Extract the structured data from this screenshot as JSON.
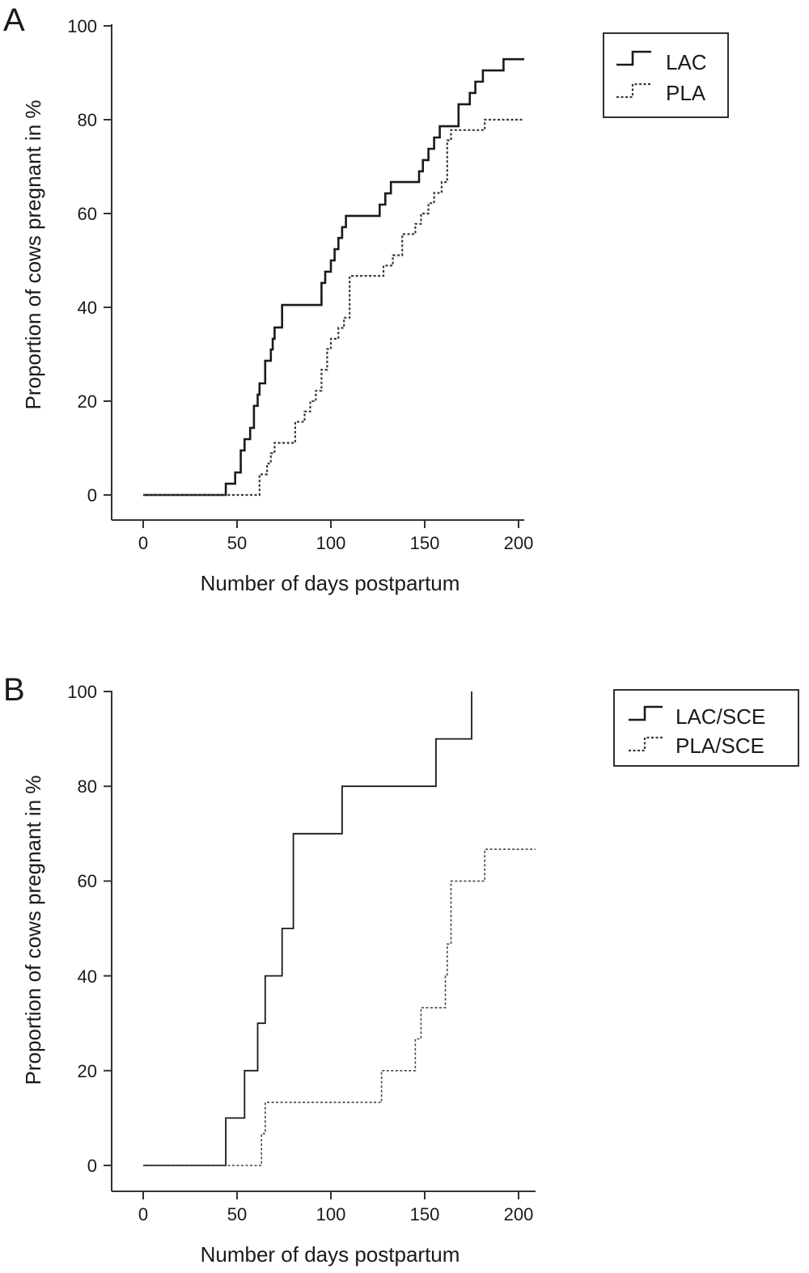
{
  "chart_data": [
    {
      "type": "line",
      "panel_label": "A",
      "xlabel": "Number of days postpartum",
      "ylabel": "Proportion of cows pregnant in %",
      "xlim": [
        -16,
        204
      ],
      "ylim": [
        -5.5,
        100
      ],
      "xticks": [
        0,
        50,
        100,
        150,
        200
      ],
      "yticks": [
        0,
        20,
        40,
        60,
        80,
        100
      ],
      "grid": false,
      "legend_position": "top-right",
      "series": [
        {
          "name": "LAC",
          "style": "solid",
          "x": [
            0,
            44,
            49,
            52,
            54,
            57,
            59,
            61,
            62,
            65,
            68,
            69,
            70,
            74,
            76,
            78,
            80,
            95,
            97,
            100,
            102,
            104,
            106,
            108,
            111,
            114,
            126,
            129,
            132,
            134,
            147,
            149,
            152,
            155,
            158,
            164,
            168,
            174,
            177,
            181,
            192,
            203
          ],
          "y": [
            0,
            2.4,
            4.8,
            9.5,
            11.9,
            14.3,
            19,
            21.4,
            23.8,
            28.6,
            31,
            33.3,
            35.7,
            40.5,
            40.5,
            40.5,
            40.5,
            45.2,
            47.6,
            50,
            52.4,
            54.8,
            57.1,
            59.5,
            59.5,
            59.5,
            61.9,
            64.3,
            66.7,
            66.7,
            69,
            71.4,
            73.8,
            76.2,
            78.6,
            78.6,
            83.3,
            85.7,
            88.1,
            90.5,
            92.9,
            92.9
          ]
        },
        {
          "name": "PLA",
          "style": "dotted",
          "x": [
            0,
            62,
            66,
            68,
            70,
            75,
            81,
            86,
            89,
            92,
            95,
            98,
            100,
            104,
            107,
            110,
            113,
            119,
            128,
            133,
            138,
            142,
            145,
            148,
            152,
            155,
            159,
            162,
            164,
            166,
            168,
            182,
            203
          ],
          "y": [
            0,
            4.4,
            6.7,
            8.9,
            11.1,
            11.1,
            15.6,
            17.8,
            20,
            22.2,
            26.7,
            31.1,
            33.3,
            35.6,
            37.8,
            46.7,
            46.7,
            46.7,
            48.9,
            51.1,
            55.6,
            55.6,
            57.8,
            60,
            62.2,
            64.4,
            66.7,
            75.6,
            77.8,
            77.8,
            77.8,
            80,
            80
          ]
        }
      ]
    },
    {
      "type": "line",
      "panel_label": "B",
      "xlabel": "Number of days postpartum",
      "ylabel": "Proportion of cows pregnant in %",
      "xlim": [
        -16,
        209
      ],
      "ylim": [
        -5.5,
        100
      ],
      "xticks": [
        0,
        50,
        100,
        150,
        200
      ],
      "yticks": [
        0,
        20,
        40,
        60,
        80,
        100
      ],
      "grid": false,
      "legend_position": "top-right",
      "series": [
        {
          "name": "LAC/SCE",
          "style": "solid",
          "x": [
            0,
            44,
            54,
            61,
            65,
            74,
            80,
            106,
            156,
            175
          ],
          "y": [
            0,
            10,
            20,
            30,
            40,
            50,
            70,
            80,
            90,
            100
          ]
        },
        {
          "name": "PLA/SCE",
          "style": "dotted",
          "x": [
            0,
            63,
            65,
            127,
            145,
            148,
            161,
            162,
            164,
            182,
            209
          ],
          "y": [
            0,
            6.7,
            13.3,
            20,
            26.7,
            33.3,
            40,
            46.7,
            60,
            66.7,
            66.7
          ]
        }
      ]
    }
  ]
}
